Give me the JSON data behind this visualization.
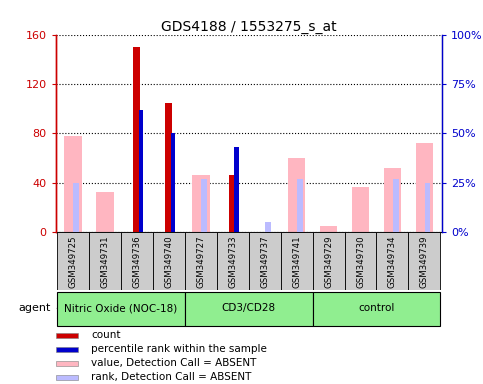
{
  "title": "GDS4188 / 1553275_s_at",
  "samples": [
    "GSM349725",
    "GSM349731",
    "GSM349736",
    "GSM349740",
    "GSM349727",
    "GSM349733",
    "GSM349737",
    "GSM349741",
    "GSM349729",
    "GSM349730",
    "GSM349734",
    "GSM349739"
  ],
  "groups": [
    {
      "name": "Nitric Oxide (NOC-18)",
      "start": 0,
      "end": 4
    },
    {
      "name": "CD3/CD28",
      "start": 4,
      "end": 8
    },
    {
      "name": "control",
      "start": 8,
      "end": 12
    }
  ],
  "count_values": [
    0,
    0,
    150,
    105,
    0,
    46,
    0,
    0,
    0,
    0,
    0,
    0
  ],
  "percentile_values": [
    0,
    0,
    62,
    50,
    0,
    43,
    0,
    0,
    0,
    0,
    0,
    0
  ],
  "absent_value_left": [
    78,
    33,
    0,
    0,
    46,
    0,
    0,
    60,
    5,
    37,
    52,
    72
  ],
  "absent_rank_right": [
    25,
    0,
    0,
    0,
    27,
    0,
    5,
    27,
    0,
    0,
    27,
    25
  ],
  "ylim_left": [
    0,
    160
  ],
  "ylim_right": [
    0,
    100
  ],
  "yticks_left": [
    0,
    40,
    80,
    120,
    160
  ],
  "yticks_right": [
    0,
    25,
    50,
    75,
    100
  ],
  "ylabel_left_color": "#CC0000",
  "ylabel_right_color": "#0000CC",
  "count_color": "#CC0000",
  "percentile_color": "#0000CC",
  "absent_value_color": "#FFB6C1",
  "absent_rank_color": "#BBBBFF",
  "group_color": "#90EE90",
  "sample_box_color": "#CCCCCC",
  "legend_items": [
    {
      "color": "#CC0000",
      "label": "count"
    },
    {
      "color": "#0000CC",
      "label": "percentile rank within the sample"
    },
    {
      "color": "#FFB6C1",
      "label": "value, Detection Call = ABSENT"
    },
    {
      "color": "#BBBBFF",
      "label": "rank, Detection Call = ABSENT"
    }
  ]
}
